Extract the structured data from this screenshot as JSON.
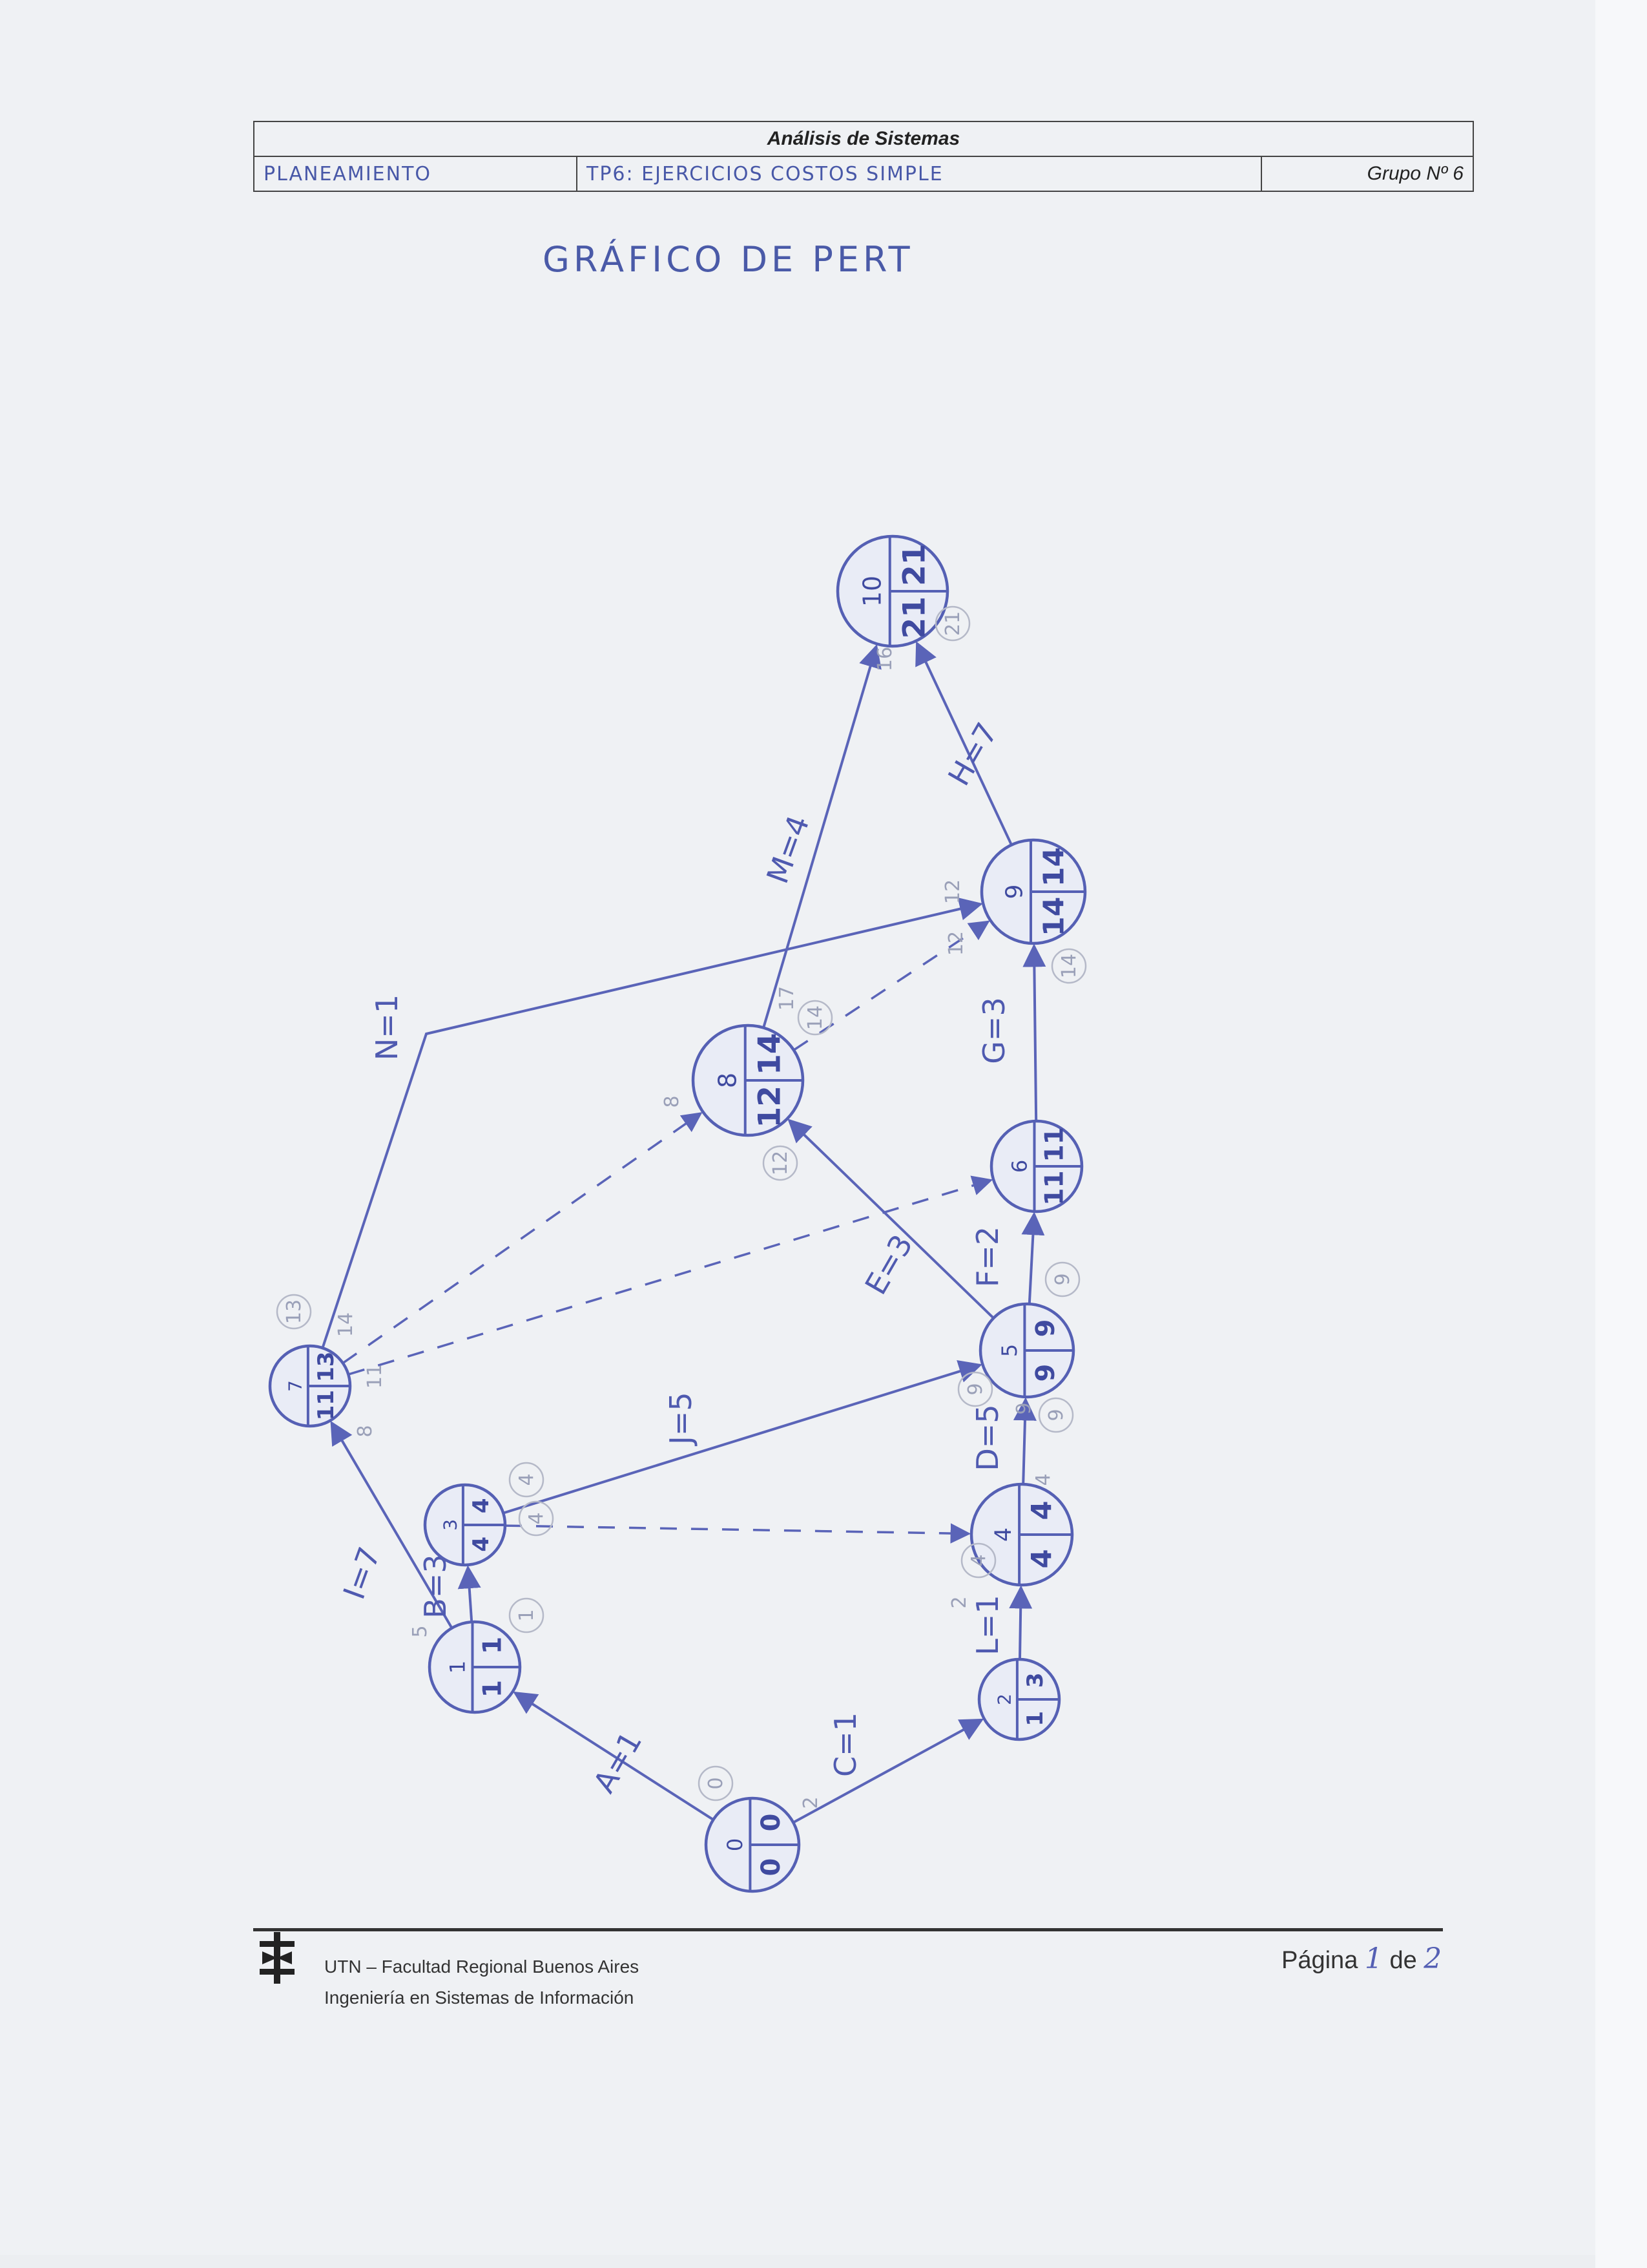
{
  "header": {
    "title": "Análisis de Sistemas",
    "subject": "PLANEAMIENTO",
    "work": "TP6: EJERCICIOS COSTOS SIMPLE",
    "group": "Grupo Nº 6"
  },
  "document_title": "GRÁFICO DE PERT",
  "nodes": [
    {
      "id": "0",
      "early": "0",
      "late": "0"
    },
    {
      "id": "1",
      "early": "1",
      "late": "1"
    },
    {
      "id": "2",
      "early": "1",
      "late": "3"
    },
    {
      "id": "3",
      "early": "4",
      "late": "4"
    },
    {
      "id": "4",
      "early": "4",
      "late": "4"
    },
    {
      "id": "5",
      "early": "9",
      "late": "9"
    },
    {
      "id": "6",
      "early": "11",
      "late": "11"
    },
    {
      "id": "7",
      "early": "11",
      "late": "13"
    },
    {
      "id": "8",
      "early": "12",
      "late": "14"
    },
    {
      "id": "9",
      "early": "14",
      "late": "14"
    },
    {
      "id": "10",
      "early": "21",
      "late": "21"
    }
  ],
  "activities": [
    {
      "label": "A=1",
      "from": "0",
      "to": "1"
    },
    {
      "label": "C=1",
      "from": "0",
      "to": "2"
    },
    {
      "label": "B=3",
      "from": "1",
      "to": "3"
    },
    {
      "label": "I=7",
      "from": "1",
      "to": "7"
    },
    {
      "label": "L=1",
      "from": "2",
      "to": "4"
    },
    {
      "label": "J=5",
      "from": "3",
      "to": "5"
    },
    {
      "label": "D=5",
      "from": "4",
      "to": "5"
    },
    {
      "label": "E=3",
      "from": "5",
      "to": "8"
    },
    {
      "label": "F=2",
      "from": "5",
      "to": "6"
    },
    {
      "label": "G=3",
      "from": "6",
      "to": "9"
    },
    {
      "label": "N=1",
      "from": "7",
      "to": "9"
    },
    {
      "label": "M=4",
      "from": "8",
      "to": "10"
    },
    {
      "label": "H=7",
      "from": "9",
      "to": "10"
    }
  ],
  "dummies": [
    {
      "from": "3",
      "to": "4"
    },
    {
      "from": "7",
      "to": "8"
    },
    {
      "from": "7",
      "to": "6"
    },
    {
      "from": "8",
      "to": "9"
    }
  ],
  "annotations": [
    "0",
    "2",
    "1",
    "5",
    "4",
    "4",
    "2",
    "4",
    "9",
    "9",
    "9",
    "9",
    "4",
    "13",
    "14",
    "8",
    "11",
    "8",
    "12",
    "14",
    "17",
    "12",
    "12",
    "14",
    "16",
    "21"
  ],
  "footer": {
    "institution": "UTN – Facultad Regional Buenos Aires",
    "program": "Ingeniería en Sistemas de Información",
    "page_prefix": "Página",
    "page_current": "1",
    "page_sep": "de",
    "page_total": "2"
  },
  "colors": {
    "ink": "#5560b4",
    "paper": "#eff1f4"
  }
}
